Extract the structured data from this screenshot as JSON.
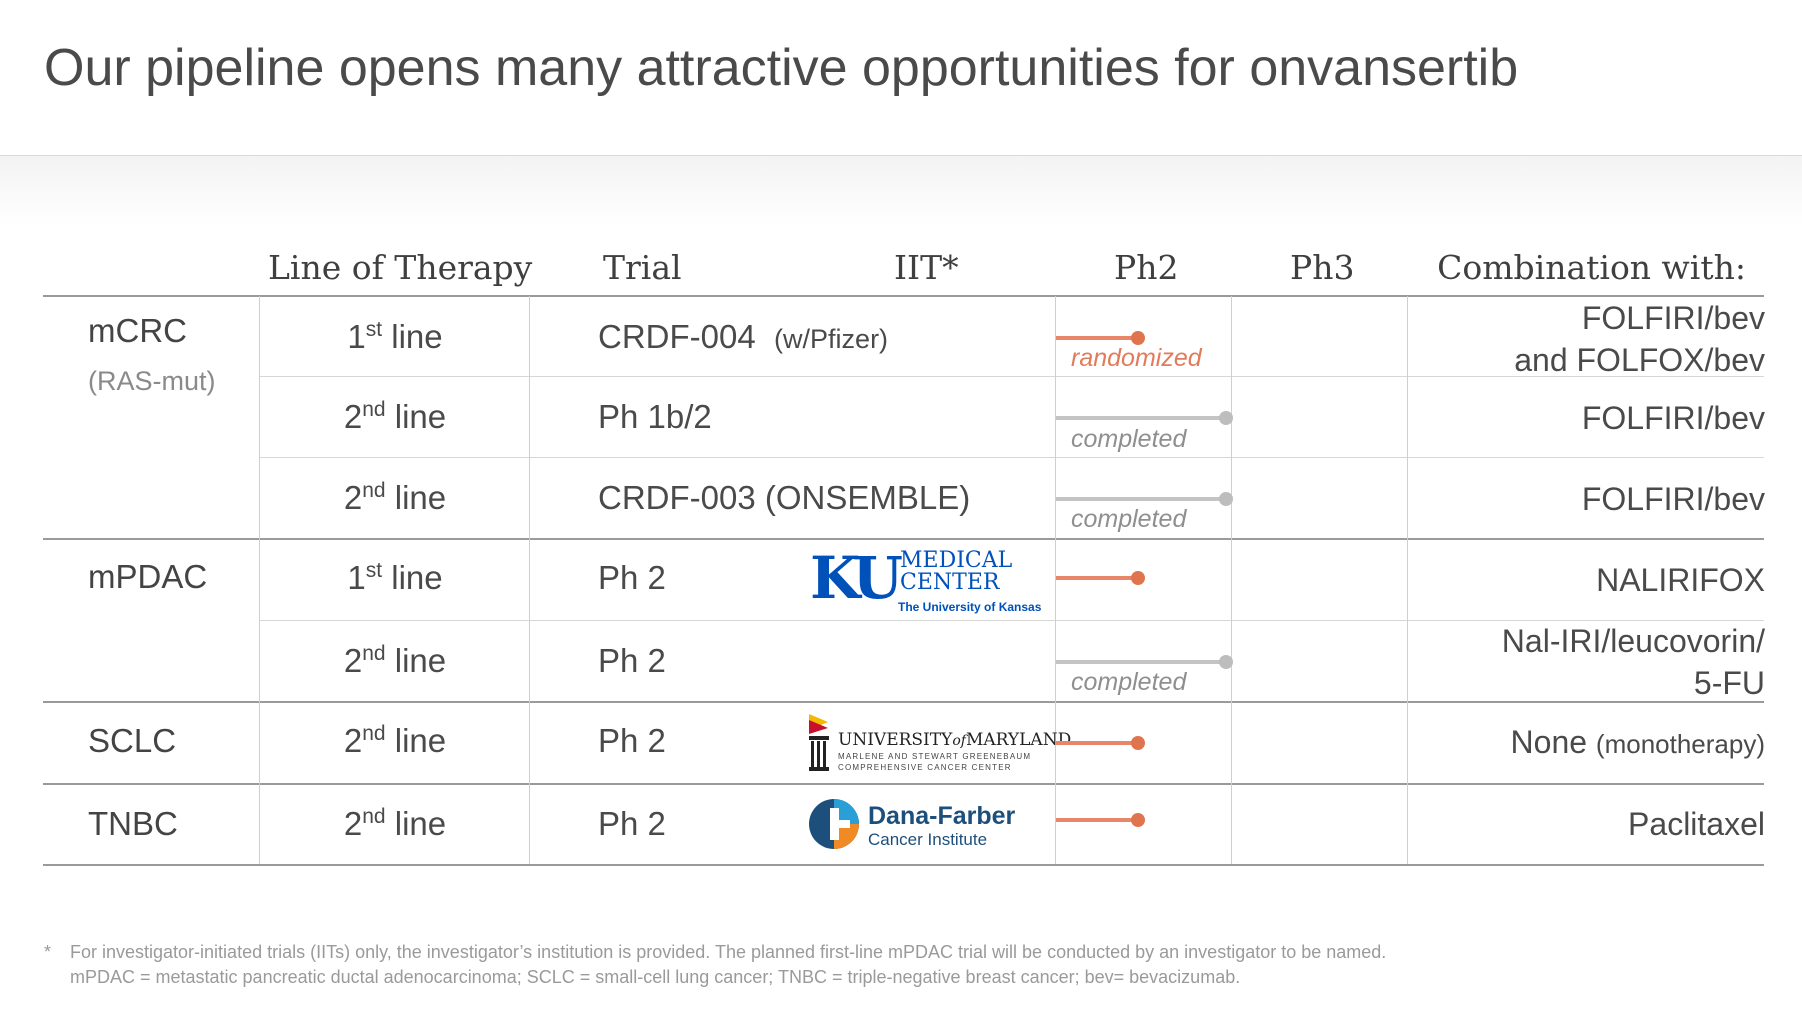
{
  "title": "Our pipeline opens many attractive opportunities for onvansertib",
  "headers": {
    "line_of_therapy": "Line of Therapy",
    "trial": "Trial",
    "iit": "IIT*",
    "ph2": "Ph2",
    "ph3": "Ph3",
    "combination": "Combination with:"
  },
  "indications": [
    {
      "name": "mCRC",
      "sub": "(RAS-mut)"
    },
    {
      "name": "mPDAC",
      "sub": ""
    },
    {
      "name": "SCLC",
      "sub": ""
    },
    {
      "name": "TNBC",
      "sub": ""
    }
  ],
  "rows": [
    {
      "lot_num": "1",
      "lot_sup": "st",
      "lot_word": "line",
      "trial": "CRDF-004",
      "trial_note": "(w/Pfizer)",
      "status": "randomized",
      "progress_pct": 50,
      "combination": [
        "FOLFIRI/bev",
        "and FOLFOX/bev"
      ]
    },
    {
      "lot_num": "2",
      "lot_sup": "nd",
      "lot_word": "line",
      "trial": "Ph 1b/2",
      "trial_note": "",
      "status": "completed",
      "progress_pct": 100,
      "combination": [
        "FOLFIRI/bev"
      ]
    },
    {
      "lot_num": "2",
      "lot_sup": "nd",
      "lot_word": "line",
      "trial": "CRDF-003 (ONSEMBLE)",
      "trial_note": "",
      "status": "completed",
      "progress_pct": 100,
      "combination": [
        "FOLFIRI/bev"
      ]
    },
    {
      "lot_num": "1",
      "lot_sup": "st",
      "lot_word": "line",
      "trial": "Ph 2",
      "trial_note": "",
      "status": "",
      "progress_pct": 50,
      "combination": [
        "NALIRIFOX"
      ]
    },
    {
      "lot_num": "2",
      "lot_sup": "nd",
      "lot_word": "line",
      "trial": "Ph 2",
      "trial_note": "",
      "status": "completed",
      "progress_pct": 100,
      "combination": [
        "Nal-IRI/leucovorin/",
        "5-FU"
      ]
    },
    {
      "lot_num": "2",
      "lot_sup": "nd",
      "lot_word": "line",
      "trial": "Ph 2",
      "trial_note": "",
      "status": "",
      "progress_pct": 50,
      "combination": [
        "None"
      ],
      "combination_note": "(monotherapy)"
    },
    {
      "lot_num": "2",
      "lot_sup": "nd",
      "lot_word": "line",
      "trial": "Ph 2",
      "trial_note": "",
      "status": "",
      "progress_pct": 50,
      "combination": [
        "Paclitaxel"
      ]
    }
  ],
  "logos": {
    "ku": {
      "mark": "KU",
      "line1": "MEDICAL",
      "line2": "CENTER",
      "line3": "The University of Kansas",
      "color": "#0051ba"
    },
    "umd": {
      "line1a": "UNIVERSITY",
      "line1b": "of",
      "line1c": "MARYLAND",
      "line2": "MARLENE AND STEWART GREENEBAUM",
      "line3": "COMPREHENSIVE CANCER CENTER"
    },
    "dfci": {
      "line1": "Dana-Farber",
      "line2": "Cancer Institute",
      "color": "#1d4f7c"
    }
  },
  "colors": {
    "accent": "#e0744f",
    "completed": "#bdbdbd"
  },
  "footnote": {
    "star": "*",
    "line1": "For investigator-initiated trials (IITs) only, the investigator’s institution is provided. The planned first-line mPDAC trial will be conducted by an investigator to be named.",
    "line2": "mPDAC = metastatic pancreatic ductal adenocarcinoma; SCLC = small-cell lung cancer; TNBC = triple-negative breast cancer; bev= bevacizumab."
  }
}
